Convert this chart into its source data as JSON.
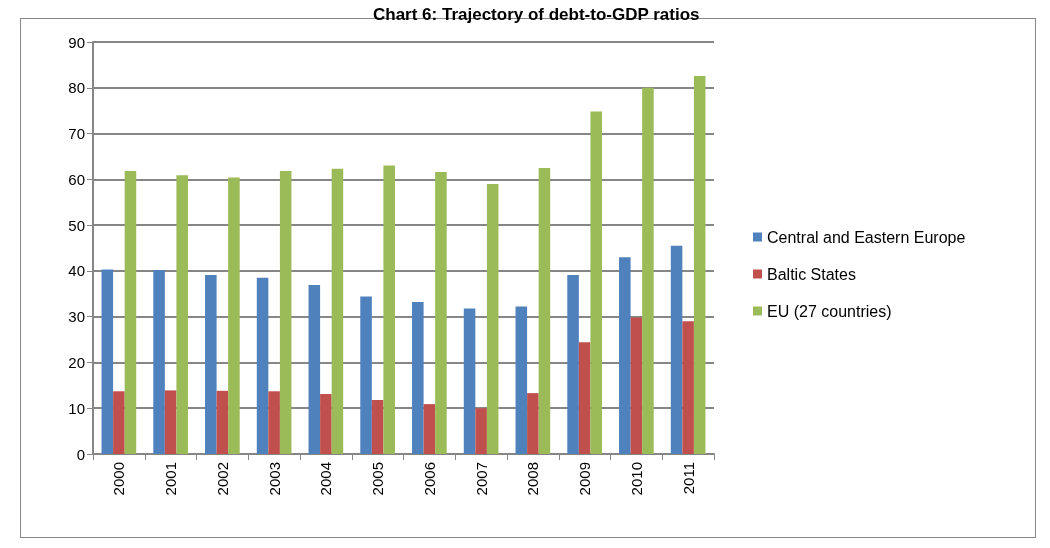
{
  "chart_data": {
    "type": "bar",
    "title": "Chart 6: Trajectory of debt-to-GDP ratios",
    "categories": [
      "2000",
      "2001",
      "2002",
      "2003",
      "2004",
      "2005",
      "2006",
      "2007",
      "2008",
      "2009",
      "2010",
      "2011"
    ],
    "series": [
      {
        "name": "Central and Eastern Europe",
        "color": "#4f81bd",
        "values": [
          40.3,
          40.2,
          39.1,
          38.5,
          36.9,
          34.4,
          33.2,
          31.8,
          32.2,
          39.1,
          43.0,
          45.5
        ]
      },
      {
        "name": "Baltic States",
        "color": "#c0504d",
        "values": [
          13.7,
          13.9,
          13.8,
          13.7,
          13.1,
          11.8,
          10.9,
          10.0,
          13.3,
          24.4,
          29.8,
          29.0
        ]
      },
      {
        "name": "EU (27 countries)",
        "color": "#9bbb59",
        "values": [
          61.8,
          60.9,
          60.4,
          61.8,
          62.3,
          63.0,
          61.6,
          59.0,
          62.5,
          74.8,
          80.0,
          82.6
        ]
      }
    ],
    "ylim": [
      0,
      90
    ],
    "yticks": [
      0,
      10,
      20,
      30,
      40,
      50,
      60,
      70,
      80,
      90
    ],
    "grid": "y",
    "legend": "right"
  }
}
